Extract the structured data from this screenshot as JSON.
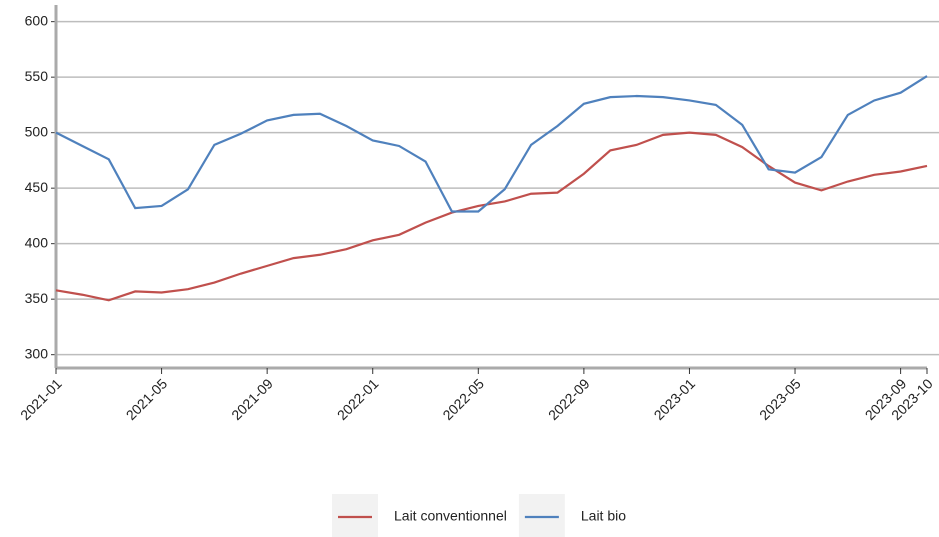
{
  "chart_data": {
    "type": "line",
    "x": [
      "2021-01",
      "2021-02",
      "2021-03",
      "2021-04",
      "2021-05",
      "2021-06",
      "2021-07",
      "2021-08",
      "2021-09",
      "2021-10",
      "2021-11",
      "2021-12",
      "2022-01",
      "2022-02",
      "2022-03",
      "2022-04",
      "2022-05",
      "2022-06",
      "2022-07",
      "2022-08",
      "2022-09",
      "2022-10",
      "2022-11",
      "2022-12",
      "2023-01",
      "2023-02",
      "2023-03",
      "2023-04",
      "2023-05",
      "2023-06",
      "2023-07",
      "2023-08",
      "2023-09",
      "2023-10"
    ],
    "xticks": [
      "2021-01",
      "2021-05",
      "2021-09",
      "2022-01",
      "2022-05",
      "2022-09",
      "2023-01",
      "2023-05",
      "2023-09",
      "2023-10"
    ],
    "series": [
      {
        "name": "Lait conventionnel",
        "color": "#c0504d",
        "values": [
          358,
          354,
          349,
          357,
          356,
          359,
          365,
          373,
          380,
          387,
          390,
          395,
          403,
          408,
          419,
          428,
          434,
          438,
          445,
          446,
          463,
          484,
          489,
          498,
          500,
          498,
          487,
          470,
          455,
          448,
          456,
          462,
          465,
          470
        ]
      },
      {
        "name": "Lait bio",
        "color": "#4f81bd",
        "values": [
          500,
          488,
          476,
          432,
          434,
          449,
          489,
          499,
          511,
          516,
          517,
          506,
          493,
          488,
          474,
          429,
          429,
          449,
          489,
          506,
          526,
          532,
          533,
          532,
          529,
          525,
          507,
          467,
          464,
          478,
          516,
          529,
          536,
          551
        ]
      }
    ],
    "ylim": [
      288,
      615
    ],
    "yticks": [
      300,
      350,
      400,
      450,
      500,
      550,
      600
    ],
    "grid": true,
    "legend": "bottom"
  }
}
